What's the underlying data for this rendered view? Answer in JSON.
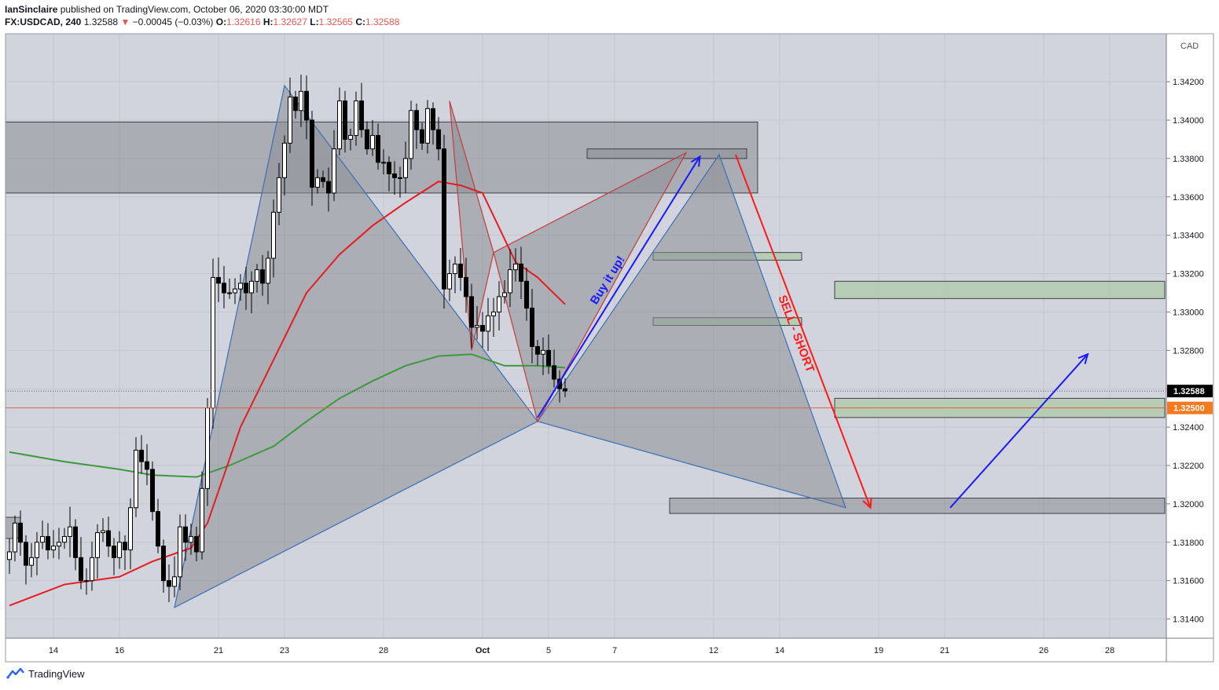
{
  "header": {
    "author": "IanSinclaire",
    "published_text": "published on TradingView.com, October 06, 2020 03:30:00 MDT",
    "symbol": "FX:USDCAD, 240",
    "last": "1.32588",
    "change_arrow": "▼",
    "change": "−0.00045 (−0.03%)",
    "open_label": "O:",
    "open": "1.32616",
    "high_label": "H:",
    "high": "1.32627",
    "low_label": "L:",
    "low": "1.32565",
    "close_label": "C:",
    "close": "1.32588"
  },
  "footer": {
    "brand": "TradingView",
    "icon": "tradingview-logo-icon"
  },
  "colors": {
    "background": "#d1d4dc",
    "candle_up": "#ffffff",
    "candle_down": "#000000",
    "ema_fast": "#e51c23",
    "ema_slow": "#3c9a3c",
    "zone_gray": "#8a8c94",
    "zone_green": "#b3cbb0",
    "pattern_fill": "#8c8e96",
    "pattern_blue_edge": "#3b6fb5",
    "pattern_red_edge": "#c13d3d",
    "arrow_blue": "#1a1aff",
    "arrow_red": "#ff1a1a",
    "last_price_tag": "#000000",
    "level_tag": "#f57a1f"
  },
  "chart_data": {
    "type": "candlestick",
    "symbol": "FX:USDCAD",
    "interval": "240",
    "currency_label": "CAD",
    "ylim": [
      1.313,
      1.3445
    ],
    "y_ticks": [
      "1.34200",
      "1.34000",
      "1.33800",
      "1.33600",
      "1.33400",
      "1.33200",
      "1.33000",
      "1.32800",
      "1.32600",
      "1.32400",
      "1.32200",
      "1.32000",
      "1.31800",
      "1.31600",
      "1.31400"
    ],
    "x_ticks": [
      {
        "label": "14",
        "i": 6
      },
      {
        "label": "16",
        "i": 18
      },
      {
        "label": "21",
        "i": 36
      },
      {
        "label": "23",
        "i": 48
      },
      {
        "label": "28",
        "i": 66
      },
      {
        "label": "Oct",
        "i": 84
      },
      {
        "label": "5",
        "i": 96
      },
      {
        "label": "7",
        "i": 108
      },
      {
        "label": "12",
        "i": 126
      },
      {
        "label": "14",
        "i": 138
      },
      {
        "label": "19",
        "i": 156
      },
      {
        "label": "21",
        "i": 168
      },
      {
        "label": "26",
        "i": 186
      },
      {
        "label": "28",
        "i": 198
      }
    ],
    "candles_count": 102,
    "candles_close": [
      1.3175,
      1.319,
      1.318,
      1.3168,
      1.3172,
      1.318,
      1.3183,
      1.3176,
      1.3178,
      1.318,
      1.3183,
      1.3188,
      1.3172,
      1.316,
      1.316,
      1.3172,
      1.3185,
      1.3186,
      1.3178,
      1.3172,
      1.318,
      1.3176,
      1.3198,
      1.3228,
      1.3222,
      1.3218,
      1.3196,
      1.3178,
      1.316,
      1.3157,
      1.3162,
      1.3188,
      1.318,
      1.3183,
      1.3175,
      1.3208,
      1.325,
      1.3318,
      1.3315,
      1.331,
      1.331,
      1.3312,
      1.3315,
      1.331,
      1.3316,
      1.3322,
      1.3315,
      1.3328,
      1.3352,
      1.337,
      1.3388,
      1.3412,
      1.3405,
      1.3415,
      1.34,
      1.3365,
      1.337,
      1.3368,
      1.3362,
      1.3385,
      1.341,
      1.339,
      1.3392,
      1.341,
      1.3395,
      1.3385,
      1.3392,
      1.3378,
      1.3378,
      1.3372,
      1.337,
      1.337,
      1.338,
      1.3405,
      1.3395,
      1.3388,
      1.3406,
      1.3395,
      1.3385,
      1.3312,
      1.332,
      1.3325,
      1.3318,
      1.3308,
      1.3292,
      1.3293,
      1.329,
      1.3298,
      1.33,
      1.3308,
      1.331,
      1.3322,
      1.3325,
      1.3316,
      1.3302,
      1.3282,
      1.3278,
      1.328,
      1.3272,
      1.3265,
      1.326,
      1.32588
    ],
    "ema_fast": [
      [
        0,
        1.3147
      ],
      [
        10,
        1.3158
      ],
      [
        20,
        1.3162
      ],
      [
        26,
        1.317
      ],
      [
        33,
        1.3177
      ],
      [
        36,
        1.319
      ],
      [
        42,
        1.324
      ],
      [
        48,
        1.3275
      ],
      [
        54,
        1.331
      ],
      [
        60,
        1.333
      ],
      [
        66,
        1.3345
      ],
      [
        72,
        1.3357
      ],
      [
        78,
        1.3368
      ],
      [
        82,
        1.3366
      ],
      [
        86,
        1.3362
      ],
      [
        92,
        1.3326
      ],
      [
        96,
        1.3318
      ],
      [
        101,
        1.3304
      ]
    ],
    "ema_slow": [
      [
        0,
        1.3227
      ],
      [
        10,
        1.3222
      ],
      [
        20,
        1.3218
      ],
      [
        26,
        1.3215
      ],
      [
        34,
        1.3214
      ],
      [
        40,
        1.322
      ],
      [
        48,
        1.323
      ],
      [
        54,
        1.3243
      ],
      [
        60,
        1.3255
      ],
      [
        66,
        1.3264
      ],
      [
        72,
        1.3272
      ],
      [
        78,
        1.3277
      ],
      [
        84,
        1.3278
      ],
      [
        90,
        1.3272
      ],
      [
        96,
        1.3272
      ],
      [
        101,
        1.3271
      ]
    ],
    "zones_gray": [
      {
        "x1": -12,
        "x2": 136,
        "y_top": 1.3399,
        "y_bot": 1.3362
      },
      {
        "x1": -12,
        "x2": -4.5,
        "y_top": 1.337,
        "y_bot": 1.3225
      },
      {
        "x1": -12,
        "x2": 2,
        "y_top": 1.3193,
        "y_bot": 1.3182
      },
      {
        "x1": 105,
        "x2": 134,
        "y_top": 1.3385,
        "y_bot": 1.338
      },
      {
        "x1": 120,
        "x2": 210,
        "y_top": 1.3203,
        "y_bot": 1.3195
      }
    ],
    "zones_green": [
      {
        "x1": -12,
        "x2": -7,
        "y_top": 1.3147,
        "y_bot": 1.3143
      },
      {
        "x1": 117,
        "x2": 144,
        "y_top": 1.3331,
        "y_bot": 1.3327
      },
      {
        "x1": 117,
        "x2": 144,
        "y_top": 1.3297,
        "y_bot": 1.3293
      },
      {
        "x1": 150,
        "x2": 210,
        "y_top": 1.3316,
        "y_bot": 1.3307
      },
      {
        "x1": 150,
        "x2": 210,
        "y_top": 1.3255,
        "y_bot": 1.3245
      }
    ],
    "harmonic_blue": {
      "X": [
        30,
        1.3146
      ],
      "A": [
        50,
        1.3418
      ],
      "B": [
        96,
        1.3243
      ],
      "C": [
        129,
        1.3382
      ],
      "D": [
        152,
        1.3198
      ]
    },
    "harmonic_red": {
      "X": [
        80,
        1.341
      ],
      "A": [
        84,
        1.328
      ],
      "B": [
        88,
        1.3331
      ],
      "C": [
        96,
        1.3243
      ],
      "D": [
        123,
        1.3383
      ]
    },
    "arrows": [
      {
        "color": "blue",
        "from": [
          96,
          1.3245
        ],
        "to": [
          125.5,
          1.3381
        ],
        "label": "Buy it up!"
      },
      {
        "color": "red",
        "from": [
          132,
          1.3382
        ],
        "to": [
          156.5,
          1.3198
        ],
        "label": "SELL - SHORT"
      },
      {
        "color": "blue",
        "from": [
          171,
          1.3198
        ],
        "to": [
          196,
          1.3278
        ],
        "label": ""
      }
    ],
    "hlines": [
      {
        "price": 1.32588,
        "style": "dotted",
        "color": "#555555"
      },
      {
        "price": 1.325,
        "style": "solid",
        "color": "#e0623a"
      }
    ],
    "price_tags": [
      {
        "text": "1.32588",
        "price": 1.32588,
        "bg": "#000000"
      },
      {
        "text": "1.32500",
        "price": 1.325,
        "bg": "#f57a1f"
      }
    ]
  }
}
